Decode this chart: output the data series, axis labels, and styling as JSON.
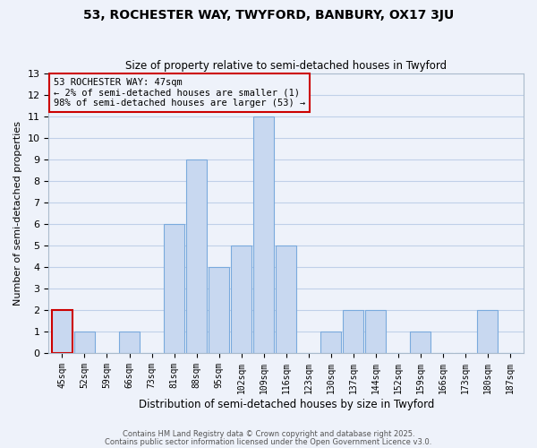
{
  "title": "53, ROCHESTER WAY, TWYFORD, BANBURY, OX17 3JU",
  "subtitle": "Size of property relative to semi-detached houses in Twyford",
  "xlabel": "Distribution of semi-detached houses by size in Twyford",
  "ylabel": "Number of semi-detached properties",
  "bin_labels": [
    "45sqm",
    "52sqm",
    "59sqm",
    "66sqm",
    "73sqm",
    "81sqm",
    "88sqm",
    "95sqm",
    "102sqm",
    "109sqm",
    "116sqm",
    "123sqm",
    "130sqm",
    "137sqm",
    "144sqm",
    "152sqm",
    "159sqm",
    "166sqm",
    "173sqm",
    "180sqm",
    "187sqm"
  ],
  "bin_values": [
    2,
    1,
    0,
    1,
    0,
    6,
    9,
    4,
    5,
    11,
    5,
    0,
    1,
    2,
    2,
    0,
    1,
    0,
    0,
    2,
    0
  ],
  "highlight_bin_index": 0,
  "bar_color": "#c8d8f0",
  "highlight_edge_color": "#cc0000",
  "bar_edge_color": "#7aaadd",
  "grid_color": "#c0d0e8",
  "background_color": "#eef2fa",
  "annotation_box_edge": "#cc0000",
  "annotation_title": "53 ROCHESTER WAY: 47sqm",
  "annotation_line1": "← 2% of semi-detached houses are smaller (1)",
  "annotation_line2": "98% of semi-detached houses are larger (53) →",
  "ylim": [
    0,
    13
  ],
  "yticks": [
    0,
    1,
    2,
    3,
    4,
    5,
    6,
    7,
    8,
    9,
    10,
    11,
    12,
    13
  ],
  "footer1": "Contains HM Land Registry data © Crown copyright and database right 2025.",
  "footer2": "Contains public sector information licensed under the Open Government Licence v3.0."
}
